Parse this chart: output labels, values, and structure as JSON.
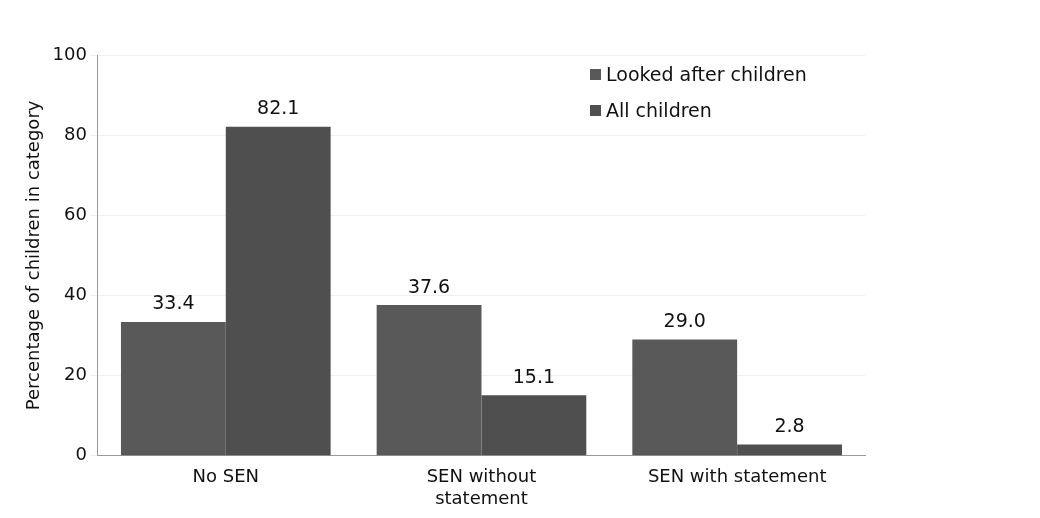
{
  "chart_data": {
    "type": "bar",
    "ylabel": "Percentage of children in category",
    "categories": [
      "No SEN",
      "SEN without statement",
      "SEN with statement"
    ],
    "series": [
      {
        "name": "Looked after children",
        "color": "#595959",
        "values": [
          33.4,
          37.6,
          29.0
        ],
        "value_labels": [
          "33.4",
          "37.6",
          "29.0"
        ]
      },
      {
        "name": "All children",
        "color": "#4f4f4f",
        "values": [
          82.1,
          15.1,
          2.8
        ],
        "value_labels": [
          "82.1",
          "15.1",
          "2.8"
        ]
      }
    ],
    "ylim": [
      0,
      100
    ],
    "yticks": [
      0,
      20,
      40,
      60,
      80,
      100
    ],
    "grid": "y",
    "legend": "top right"
  }
}
